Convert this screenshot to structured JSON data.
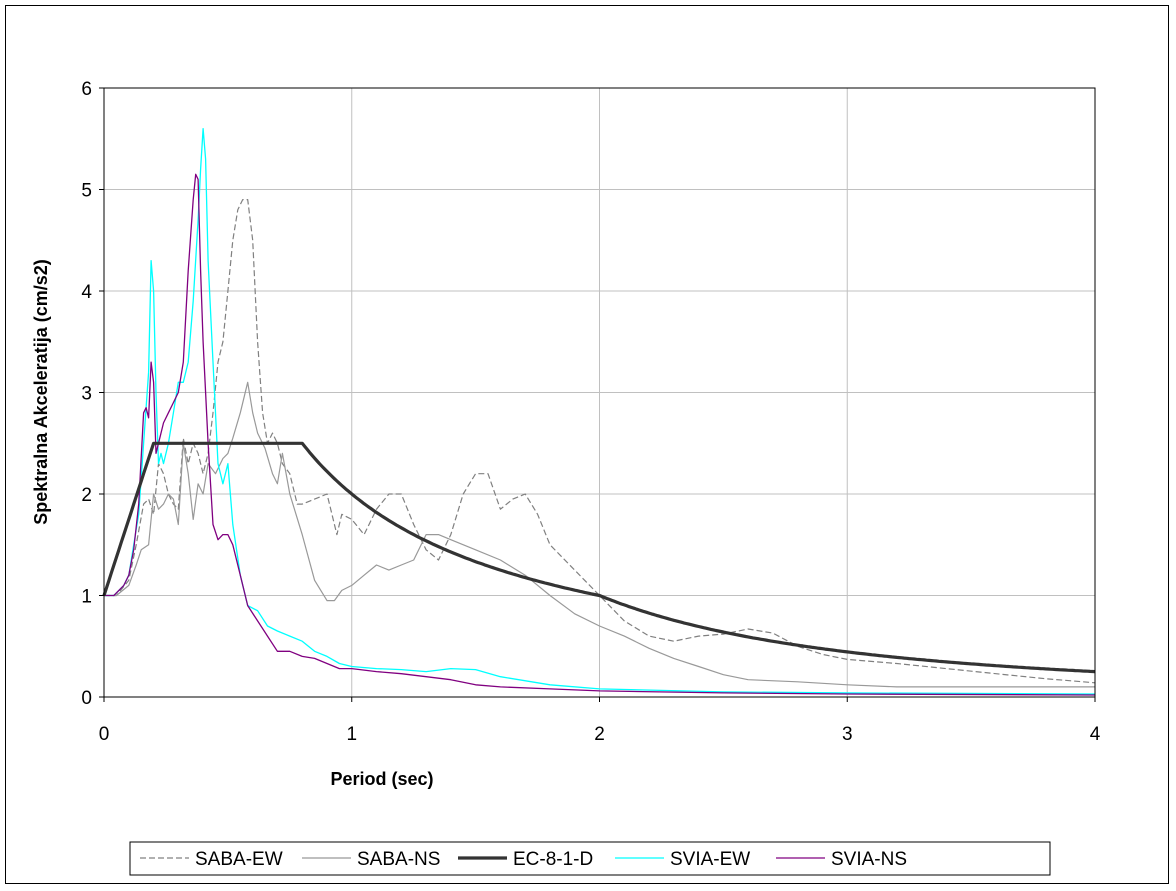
{
  "chart_data": {
    "type": "line",
    "title": "",
    "xlabel": "Period (sec)",
    "ylabel": "Spektralna Akceleratija (cm/s2)",
    "xlim": [
      0,
      4
    ],
    "ylim": [
      0,
      6
    ],
    "xticks": [
      "0",
      "1",
      "2",
      "3",
      "4"
    ],
    "yticks": [
      "0",
      "1",
      "2",
      "3",
      "4",
      "5",
      "6"
    ],
    "grid": true,
    "legend_position": "bottom",
    "series": [
      {
        "name": "SABA-EW",
        "color": "#808080",
        "dash": "dashed",
        "width": 1.2,
        "x": [
          0,
          0.05,
          0.1,
          0.13,
          0.16,
          0.18,
          0.2,
          0.22,
          0.24,
          0.26,
          0.28,
          0.3,
          0.32,
          0.34,
          0.36,
          0.38,
          0.4,
          0.42,
          0.44,
          0.46,
          0.48,
          0.5,
          0.52,
          0.54,
          0.56,
          0.58,
          0.6,
          0.62,
          0.64,
          0.66,
          0.68,
          0.7,
          0.72,
          0.75,
          0.78,
          0.8,
          0.85,
          0.9,
          0.94,
          0.96,
          1.0,
          1.05,
          1.1,
          1.15,
          1.2,
          1.25,
          1.3,
          1.35,
          1.4,
          1.45,
          1.5,
          1.55,
          1.6,
          1.65,
          1.7,
          1.75,
          1.8,
          1.9,
          2.0,
          2.1,
          2.2,
          2.3,
          2.4,
          2.5,
          2.6,
          2.7,
          2.8,
          2.9,
          3.0,
          3.2,
          3.4,
          3.6,
          3.8,
          4.0
        ],
        "y": [
          1.0,
          1.0,
          1.15,
          1.5,
          1.9,
          1.95,
          1.8,
          2.3,
          2.2,
          2.0,
          1.9,
          1.85,
          2.55,
          2.3,
          2.5,
          2.4,
          2.2,
          2.4,
          2.8,
          3.3,
          3.5,
          4.0,
          4.5,
          4.8,
          4.9,
          4.9,
          4.5,
          3.5,
          2.8,
          2.5,
          2.6,
          2.5,
          2.3,
          2.2,
          1.9,
          1.9,
          1.95,
          2.0,
          1.6,
          1.8,
          1.75,
          1.6,
          1.85,
          2.0,
          2.0,
          1.7,
          1.45,
          1.35,
          1.6,
          2.0,
          2.2,
          2.2,
          1.85,
          1.95,
          2.0,
          1.8,
          1.5,
          1.25,
          1.0,
          0.75,
          0.6,
          0.55,
          0.6,
          0.62,
          0.67,
          0.63,
          0.5,
          0.42,
          0.37,
          0.33,
          0.28,
          0.23,
          0.18,
          0.14
        ]
      },
      {
        "name": "SABA-NS",
        "color": "#999999",
        "dash": "solid",
        "width": 1.2,
        "x": [
          0,
          0.05,
          0.1,
          0.13,
          0.15,
          0.18,
          0.2,
          0.22,
          0.24,
          0.26,
          0.28,
          0.3,
          0.32,
          0.34,
          0.36,
          0.38,
          0.4,
          0.42,
          0.45,
          0.48,
          0.5,
          0.52,
          0.55,
          0.58,
          0.6,
          0.62,
          0.65,
          0.68,
          0.7,
          0.72,
          0.75,
          0.8,
          0.85,
          0.9,
          0.93,
          0.96,
          1.0,
          1.05,
          1.1,
          1.15,
          1.2,
          1.25,
          1.3,
          1.35,
          1.4,
          1.5,
          1.6,
          1.7,
          1.8,
          1.9,
          2.0,
          2.1,
          2.2,
          2.3,
          2.4,
          2.5,
          2.6,
          2.8,
          3.0,
          3.2,
          3.5,
          4.0
        ],
        "y": [
          1.0,
          1.0,
          1.1,
          1.3,
          1.45,
          1.5,
          2.0,
          1.85,
          1.9,
          2.0,
          1.95,
          1.7,
          2.5,
          2.2,
          1.75,
          2.1,
          2.0,
          2.3,
          2.2,
          2.35,
          2.4,
          2.55,
          2.8,
          3.1,
          2.8,
          2.6,
          2.45,
          2.2,
          2.1,
          2.4,
          2.0,
          1.6,
          1.15,
          0.95,
          0.95,
          1.05,
          1.1,
          1.2,
          1.3,
          1.25,
          1.3,
          1.35,
          1.6,
          1.6,
          1.55,
          1.45,
          1.35,
          1.2,
          1.0,
          0.82,
          0.7,
          0.6,
          0.48,
          0.38,
          0.3,
          0.22,
          0.17,
          0.15,
          0.12,
          0.1,
          0.1,
          0.1
        ]
      },
      {
        "name": "EC-8-1-D",
        "color": "#333333",
        "dash": "solid",
        "width": 3.2,
        "x": [
          0,
          0.2,
          0.8,
          2.0,
          4.0
        ],
        "y": [
          1.0,
          2.5,
          2.5,
          1.0,
          0.25
        ],
        "kind": "ec8",
        "params": {
          "S": 1.0,
          "TB": 0.2,
          "TC": 0.8,
          "TD": 2.0,
          "eta": 2.5
        }
      },
      {
        "name": "SVIA-EW",
        "color": "#00ffff",
        "dash": "solid",
        "width": 1.3,
        "x": [
          0,
          0.04,
          0.08,
          0.1,
          0.12,
          0.14,
          0.16,
          0.18,
          0.19,
          0.2,
          0.21,
          0.22,
          0.23,
          0.24,
          0.26,
          0.28,
          0.3,
          0.32,
          0.34,
          0.36,
          0.38,
          0.39,
          0.4,
          0.41,
          0.42,
          0.44,
          0.46,
          0.48,
          0.5,
          0.52,
          0.55,
          0.58,
          0.62,
          0.66,
          0.7,
          0.75,
          0.8,
          0.85,
          0.9,
          0.95,
          1.0,
          1.1,
          1.2,
          1.3,
          1.4,
          1.5,
          1.6,
          1.8,
          2.0,
          2.5,
          3.0,
          4.0
        ],
        "y": [
          1.0,
          1.0,
          1.1,
          1.2,
          1.5,
          1.8,
          2.5,
          3.2,
          4.3,
          4.0,
          3.0,
          2.3,
          2.4,
          2.3,
          2.5,
          2.8,
          3.1,
          3.1,
          3.3,
          3.9,
          4.7,
          5.2,
          5.6,
          5.3,
          4.3,
          3.3,
          2.3,
          2.1,
          2.3,
          1.7,
          1.2,
          0.9,
          0.85,
          0.7,
          0.65,
          0.6,
          0.55,
          0.45,
          0.4,
          0.33,
          0.3,
          0.28,
          0.27,
          0.25,
          0.28,
          0.27,
          0.2,
          0.12,
          0.08,
          0.05,
          0.04,
          0.03
        ]
      },
      {
        "name": "SVIA-NS",
        "color": "#800080",
        "dash": "solid",
        "width": 1.3,
        "x": [
          0,
          0.04,
          0.08,
          0.1,
          0.12,
          0.14,
          0.16,
          0.17,
          0.18,
          0.19,
          0.2,
          0.21,
          0.22,
          0.24,
          0.26,
          0.28,
          0.3,
          0.32,
          0.34,
          0.36,
          0.37,
          0.38,
          0.39,
          0.4,
          0.42,
          0.44,
          0.46,
          0.48,
          0.5,
          0.52,
          0.55,
          0.58,
          0.62,
          0.66,
          0.7,
          0.75,
          0.8,
          0.85,
          0.9,
          0.95,
          1.0,
          1.1,
          1.2,
          1.3,
          1.4,
          1.5,
          1.6,
          1.8,
          2.0,
          2.5,
          3.0,
          4.0
        ],
        "y": [
          1.0,
          1.0,
          1.1,
          1.2,
          1.45,
          1.9,
          2.8,
          2.85,
          2.75,
          3.3,
          3.1,
          2.4,
          2.5,
          2.7,
          2.8,
          2.9,
          3.0,
          3.3,
          4.2,
          4.9,
          5.15,
          5.1,
          4.2,
          3.5,
          2.5,
          1.7,
          1.55,
          1.6,
          1.6,
          1.5,
          1.2,
          0.9,
          0.75,
          0.6,
          0.45,
          0.45,
          0.4,
          0.38,
          0.33,
          0.28,
          0.28,
          0.25,
          0.23,
          0.2,
          0.17,
          0.12,
          0.1,
          0.08,
          0.06,
          0.04,
          0.03,
          0.02
        ]
      }
    ]
  }
}
